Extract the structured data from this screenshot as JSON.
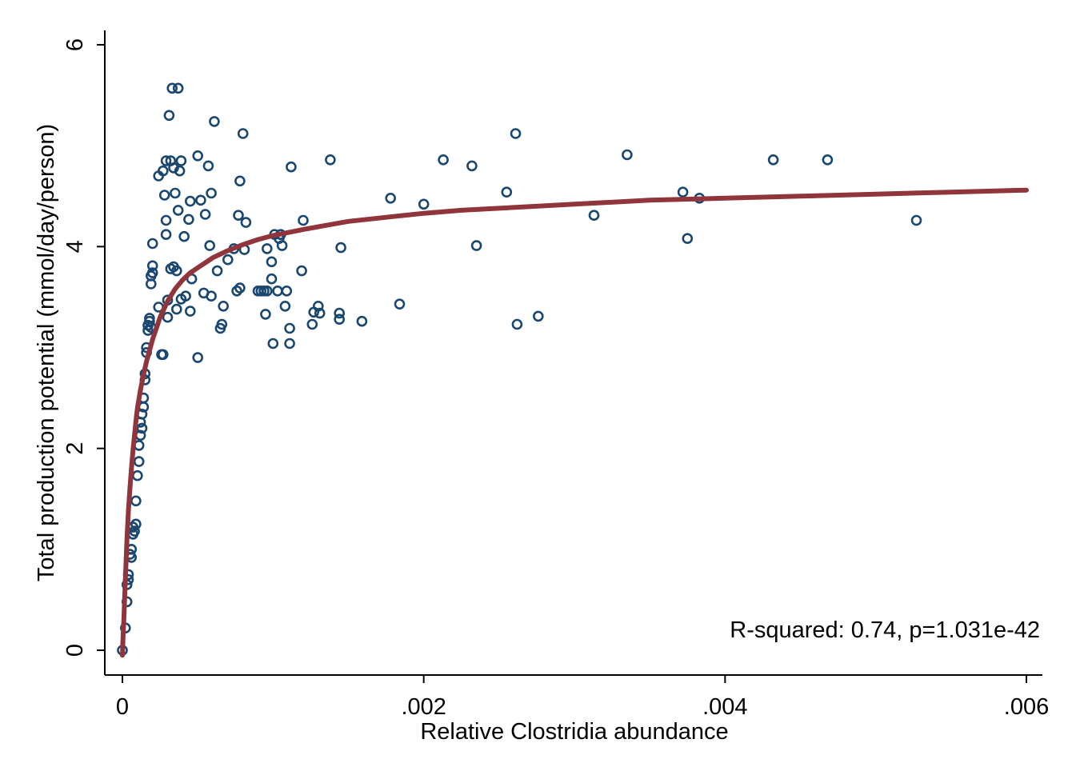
{
  "chart_data": {
    "type": "scatter",
    "xlabel": "Relative Clostridia abundance",
    "ylabel": "Total production potential (mmol/day/person)",
    "xlim": [
      0,
      0.006
    ],
    "ylim": [
      0,
      6
    ],
    "x_ticks": [
      {
        "value": 0,
        "label": "0"
      },
      {
        "value": 0.002,
        "label": ".002"
      },
      {
        "value": 0.004,
        "label": ".004"
      },
      {
        "value": 0.006,
        "label": ".006"
      }
    ],
    "y_ticks": [
      {
        "value": 0,
        "label": "0"
      },
      {
        "value": 2,
        "label": "2"
      },
      {
        "value": 4,
        "label": "4"
      },
      {
        "value": 6,
        "label": "6"
      }
    ],
    "grid": false,
    "annotation": "R-squared: 0.74, p=1.031e-42",
    "colors": {
      "points": "#1a476f",
      "fit": "#90353b",
      "axis": "#000000"
    },
    "series": [
      {
        "type": "scatter",
        "points": [
          [
            0.0,
            0.0
          ],
          [
            2e-05,
            0.22
          ],
          [
            3e-05,
            0.48
          ],
          [
            3e-05,
            0.65
          ],
          [
            4e-05,
            0.7
          ],
          [
            4e-05,
            0.75
          ],
          [
            5e-05,
            0.95
          ],
          [
            6e-05,
            1.0
          ],
          [
            6e-05,
            0.92
          ],
          [
            7e-05,
            1.15
          ],
          [
            7e-05,
            1.22
          ],
          [
            8e-05,
            1.18
          ],
          [
            9e-05,
            1.25
          ],
          [
            9e-05,
            1.48
          ],
          [
            0.0001,
            1.73
          ],
          [
            0.00011,
            1.87
          ],
          [
            0.00011,
            2.03
          ],
          [
            0.00012,
            2.13
          ],
          [
            0.00012,
            2.26
          ],
          [
            0.00013,
            2.2
          ],
          [
            0.00013,
            2.34
          ],
          [
            0.00014,
            2.41
          ],
          [
            0.00014,
            2.5
          ],
          [
            0.00015,
            2.68
          ],
          [
            0.00015,
            2.74
          ],
          [
            0.00016,
            2.95
          ],
          [
            0.00016,
            3.0
          ],
          [
            0.00017,
            3.17
          ],
          [
            0.00017,
            3.22
          ],
          [
            0.00018,
            3.26
          ],
          [
            0.00018,
            3.29
          ],
          [
            0.00019,
            3.2
          ],
          [
            0.00019,
            3.63
          ],
          [
            0.00019,
            3.71
          ],
          [
            0.0002,
            3.74
          ],
          [
            0.0002,
            3.81
          ],
          [
            0.0002,
            4.03
          ],
          [
            0.00024,
            3.4
          ],
          [
            0.00024,
            4.7
          ],
          [
            0.00026,
            2.93
          ],
          [
            0.00027,
            2.93
          ],
          [
            0.00027,
            4.75
          ],
          [
            0.00028,
            4.51
          ],
          [
            0.00029,
            4.12
          ],
          [
            0.00029,
            4.85
          ],
          [
            0.00029,
            4.26
          ],
          [
            0.0003,
            3.47
          ],
          [
            0.0003,
            3.3
          ],
          [
            0.00031,
            5.3
          ],
          [
            0.00032,
            4.85
          ],
          [
            0.00032,
            3.78
          ],
          [
            0.00033,
            5.57
          ],
          [
            0.00034,
            3.8
          ],
          [
            0.00034,
            4.78
          ],
          [
            0.00035,
            4.53
          ],
          [
            0.00036,
            3.38
          ],
          [
            0.00036,
            3.76
          ],
          [
            0.00037,
            5.57
          ],
          [
            0.00037,
            4.36
          ],
          [
            0.00038,
            4.75
          ],
          [
            0.00039,
            4.85
          ],
          [
            0.00039,
            3.48
          ],
          [
            0.00041,
            4.1
          ],
          [
            0.00042,
            3.51
          ],
          [
            0.00044,
            4.27
          ],
          [
            0.00045,
            3.36
          ],
          [
            0.00045,
            4.45
          ],
          [
            0.00046,
            3.68
          ],
          [
            0.0005,
            2.9
          ],
          [
            0.0005,
            4.9
          ],
          [
            0.00052,
            4.46
          ],
          [
            0.00054,
            3.54
          ],
          [
            0.00055,
            4.32
          ],
          [
            0.00057,
            4.8
          ],
          [
            0.00058,
            4.01
          ],
          [
            0.00059,
            3.51
          ],
          [
            0.00059,
            4.53
          ],
          [
            0.00061,
            5.24
          ],
          [
            0.00063,
            3.76
          ],
          [
            0.00065,
            3.19
          ],
          [
            0.00066,
            3.23
          ],
          [
            0.00067,
            3.41
          ],
          [
            0.0007,
            3.87
          ],
          [
            0.00074,
            3.98
          ],
          [
            0.00076,
            3.56
          ],
          [
            0.00077,
            4.31
          ],
          [
            0.00078,
            3.59
          ],
          [
            0.00078,
            4.65
          ],
          [
            0.0008,
            5.12
          ],
          [
            0.00081,
            3.97
          ],
          [
            0.00082,
            4.24
          ],
          [
            0.0009,
            3.56
          ],
          [
            0.00092,
            3.56
          ],
          [
            0.00094,
            3.56
          ],
          [
            0.00095,
            3.33
          ],
          [
            0.00096,
            3.56
          ],
          [
            0.00096,
            3.98
          ],
          [
            0.00099,
            3.85
          ],
          [
            0.00099,
            3.68
          ],
          [
            0.001,
            3.04
          ],
          [
            0.00101,
            4.12
          ],
          [
            0.00103,
            3.56
          ],
          [
            0.00104,
            4.08
          ],
          [
            0.00105,
            4.12
          ],
          [
            0.00106,
            4.01
          ],
          [
            0.00108,
            3.41
          ],
          [
            0.00109,
            3.56
          ],
          [
            0.00111,
            3.04
          ],
          [
            0.00111,
            3.19
          ],
          [
            0.00112,
            4.79
          ],
          [
            0.00119,
            3.76
          ],
          [
            0.0012,
            4.26
          ],
          [
            0.00126,
            3.23
          ],
          [
            0.00127,
            3.35
          ],
          [
            0.0013,
            3.41
          ],
          [
            0.00131,
            3.34
          ],
          [
            0.00138,
            4.86
          ],
          [
            0.00144,
            3.34
          ],
          [
            0.00144,
            3.28
          ],
          [
            0.00145,
            3.99
          ],
          [
            0.00159,
            3.26
          ],
          [
            0.00178,
            4.48
          ],
          [
            0.00184,
            3.43
          ],
          [
            0.002,
            4.42
          ],
          [
            0.00213,
            4.86
          ],
          [
            0.00232,
            4.8
          ],
          [
            0.00235,
            4.01
          ],
          [
            0.00255,
            4.54
          ],
          [
            0.00261,
            5.12
          ],
          [
            0.00262,
            3.23
          ],
          [
            0.00276,
            3.31
          ],
          [
            0.00313,
            4.31
          ],
          [
            0.00335,
            4.91
          ],
          [
            0.00372,
            4.54
          ],
          [
            0.00375,
            4.08
          ],
          [
            0.00383,
            4.48
          ],
          [
            0.00432,
            4.86
          ],
          [
            0.00468,
            4.86
          ],
          [
            0.00527,
            4.26
          ]
        ]
      },
      {
        "type": "line",
        "points": [
          [
            0.0,
            -0.05
          ],
          [
            5e-06,
            0.15
          ],
          [
            1e-05,
            0.32
          ],
          [
            1.5e-05,
            0.52
          ],
          [
            2e-05,
            0.72
          ],
          [
            2.5e-05,
            0.9
          ],
          [
            3e-05,
            1.1
          ],
          [
            4e-05,
            1.38
          ],
          [
            5e-05,
            1.6
          ],
          [
            6e-05,
            1.8
          ],
          [
            7e-05,
            1.98
          ],
          [
            8e-05,
            2.13
          ],
          [
            9e-05,
            2.27
          ],
          [
            0.0001,
            2.4
          ],
          [
            0.00012,
            2.58
          ],
          [
            0.00014,
            2.73
          ],
          [
            0.00016,
            2.86
          ],
          [
            0.00018,
            2.97
          ],
          [
            0.0002,
            3.08
          ],
          [
            0.00025,
            3.3
          ],
          [
            0.0003,
            3.46
          ],
          [
            0.00035,
            3.58
          ],
          [
            0.0004,
            3.67
          ],
          [
            0.00045,
            3.74
          ],
          [
            0.0005,
            3.79
          ],
          [
            0.0006,
            3.89
          ],
          [
            0.0007,
            3.96
          ],
          [
            0.0008,
            4.02
          ],
          [
            0.0009,
            4.07
          ],
          [
            0.001,
            4.11
          ],
          [
            0.0011,
            4.14
          ],
          [
            0.0012,
            4.17
          ],
          [
            0.00135,
            4.21
          ],
          [
            0.0015,
            4.25
          ],
          [
            0.00175,
            4.29
          ],
          [
            0.002,
            4.33
          ],
          [
            0.00225,
            4.36
          ],
          [
            0.0025,
            4.38
          ],
          [
            0.003,
            4.42
          ],
          [
            0.0035,
            4.46
          ],
          [
            0.004,
            4.48
          ],
          [
            0.0045,
            4.5
          ],
          [
            0.005,
            4.52
          ],
          [
            0.0055,
            4.54
          ],
          [
            0.006,
            4.56
          ]
        ]
      }
    ]
  }
}
